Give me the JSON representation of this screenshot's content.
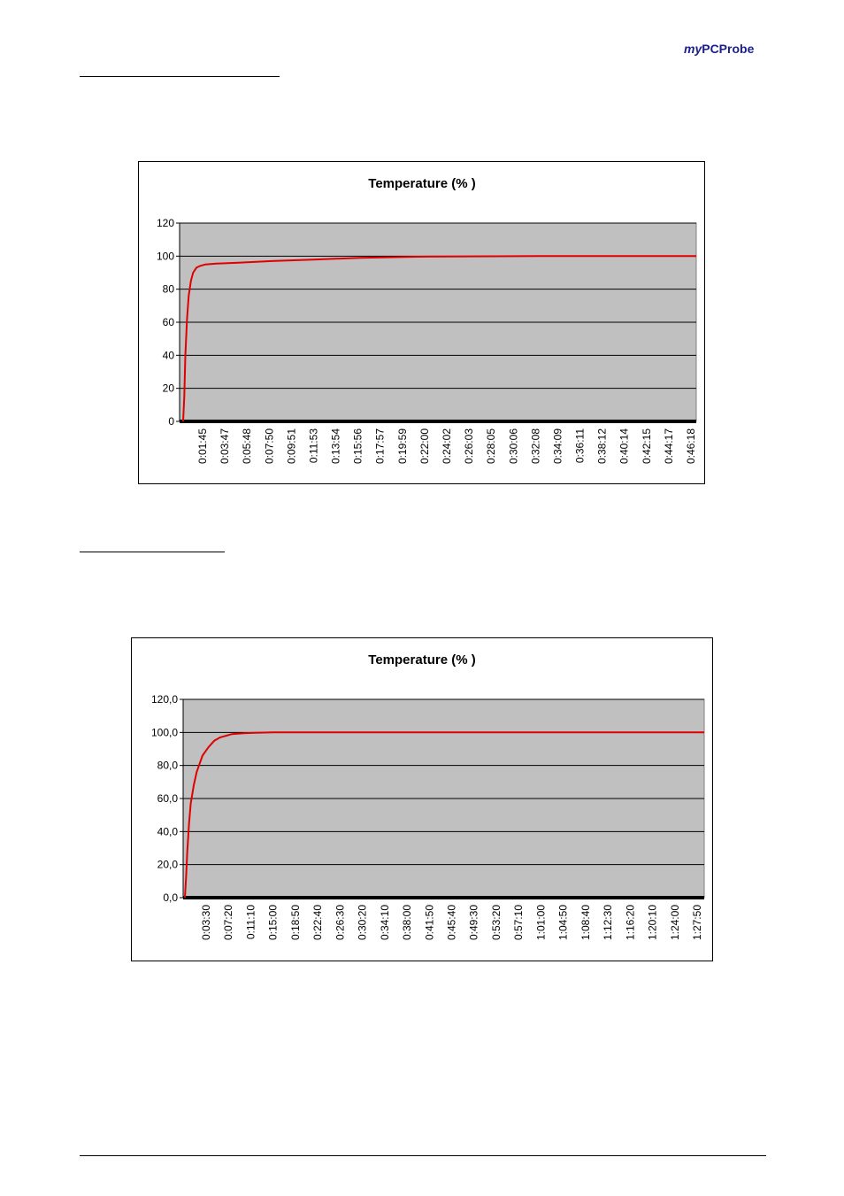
{
  "header": {
    "brand_prefix": "my",
    "brand_suffix": "PCProbe"
  },
  "colors": {
    "series": "#e00000",
    "plot_bg": "#c0c0c0",
    "brand": "#1b1f8a"
  },
  "chart_data": [
    {
      "type": "line",
      "title": "Temperature (% )",
      "xlabel": "",
      "ylabel": "",
      "ylim": [
        0,
        120
      ],
      "yticks": [
        "0",
        "20",
        "40",
        "60",
        "80",
        "100",
        "120"
      ],
      "ytick_values": [
        0,
        20,
        40,
        60,
        80,
        100,
        120
      ],
      "categories": [
        "0:01:45",
        "0:03:47",
        "0:05:48",
        "0:07:50",
        "0:09:51",
        "0:11:53",
        "0:13:54",
        "0:15:56",
        "0:17:57",
        "0:19:59",
        "0:22:00",
        "0:24:02",
        "0:26:03",
        "0:28:05",
        "0:30:06",
        "0:32:08",
        "0:34:09",
        "0:36:11",
        "0:38:12",
        "0:40:14",
        "0:42:15",
        "0:44:17",
        "0:46:18"
      ],
      "grid": true,
      "legend": "none",
      "series": [
        {
          "x": [
            0,
            0.1,
            0.2,
            0.35,
            0.5,
            0.7,
            0.9,
            1.2,
            1.5,
            2,
            3,
            5,
            8,
            12,
            16,
            20,
            22,
            24,
            28,
            32,
            36,
            40,
            44,
            46.3
          ],
          "y": [
            0,
            15,
            40,
            62,
            76,
            85,
            90,
            93,
            94,
            95,
            95.5,
            96,
            97,
            98,
            99,
            99.5,
            99.7,
            99.8,
            99.9,
            100,
            100,
            100,
            100,
            100
          ]
        }
      ]
    },
    {
      "type": "line",
      "title": "Temperature (% )",
      "xlabel": "",
      "ylabel": "",
      "ylim": [
        0,
        120
      ],
      "yticks": [
        "0,0",
        "20,0",
        "40,0",
        "60,0",
        "80,0",
        "100,0",
        "120,0"
      ],
      "ytick_values": [
        0,
        20,
        40,
        60,
        80,
        100,
        120
      ],
      "categories": [
        "0:03:30",
        "0:07:20",
        "0:11:10",
        "0:15:00",
        "0:18:50",
        "0:22:40",
        "0:26:30",
        "0:30:20",
        "0:34:10",
        "0:38:00",
        "0:41:50",
        "0:45:40",
        "0:49:30",
        "0:53:20",
        "0:57:10",
        "1:01:00",
        "1:04:50",
        "1:08:40",
        "1:12:30",
        "1:16:20",
        "1:20:10",
        "1:24:00",
        "1:27:50"
      ],
      "grid": true,
      "legend": "none",
      "series": [
        {
          "x": [
            0,
            0.2,
            0.4,
            0.7,
            1,
            1.5,
            2,
            3,
            4,
            5,
            6,
            7,
            8,
            10,
            12,
            15,
            20,
            30,
            50,
            70,
            85,
            88.3
          ],
          "y": [
            0,
            12,
            28,
            45,
            57,
            68,
            76,
            86,
            91,
            95,
            97,
            98,
            99,
            99.5,
            99.8,
            100,
            100,
            100,
            100,
            100,
            100,
            100
          ]
        }
      ]
    }
  ]
}
